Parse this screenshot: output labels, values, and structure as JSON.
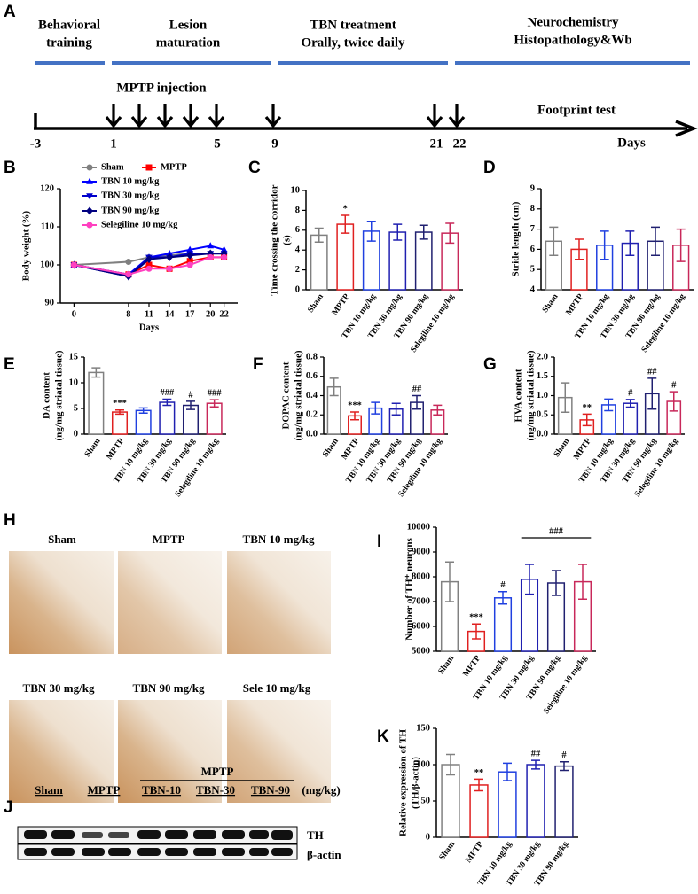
{
  "timeline": {
    "panel": "A",
    "phases": [
      [
        "Behavioral",
        "training"
      ],
      [
        "Lesion",
        "maturation"
      ],
      [
        "TBN treatment",
        "Orally, twice daily"
      ],
      [
        "Neurochemistry",
        "Histopathology&Wb"
      ]
    ],
    "injection_label": "MPTP injection",
    "test_label": "Footprint test",
    "axis_label": "Days",
    "day_labels": [
      "-3",
      "1",
      "5",
      "9",
      "21",
      "22"
    ]
  },
  "histology": {
    "panel": "H",
    "labels": [
      "Sham",
      "MPTP",
      "TBN 10 mg/kg",
      "TBN 30 mg/kg",
      "TBN 90 mg/kg",
      "Sele 10 mg/kg"
    ]
  },
  "western_blot": {
    "panel": "J",
    "group_label": "MPTP",
    "lanes": [
      "Sham",
      "MPTP",
      "TBN-10",
      "TBN-30",
      "TBN-90"
    ],
    "unit": "(mg/kg)",
    "bands": [
      "TH",
      "β-actin"
    ]
  },
  "chart_data": [
    {
      "type": "line",
      "panel": "B",
      "ylabel": [
        "Body weight (%)"
      ],
      "xlabel": "Days",
      "x": [
        0,
        8,
        11,
        14,
        17,
        20,
        22
      ],
      "xlim": [
        -2,
        24
      ],
      "xticks": [
        0,
        8,
        11,
        14,
        17,
        20,
        22
      ],
      "ylim": [
        90,
        120
      ],
      "yticks": [
        90,
        100,
        110,
        120
      ],
      "series": [
        {
          "name": "Sham",
          "color": "#808080",
          "marker": "circle",
          "values": [
            100,
            100.8,
            102,
            102.5,
            103,
            103,
            103
          ]
        },
        {
          "name": "MPTP",
          "color": "#ff0000",
          "marker": "square",
          "values": [
            100,
            97.5,
            100,
            99,
            101,
            102,
            102
          ]
        },
        {
          "name": "TBN 10 mg/kg",
          "color": "#0000ff",
          "marker": "triangle-up",
          "values": [
            100,
            97.5,
            102,
            103,
            104,
            105,
            104
          ]
        },
        {
          "name": "TBN 30 mg/kg",
          "color": "#0000cc",
          "marker": "triangle-down",
          "values": [
            100,
            97,
            102,
            102,
            103,
            103,
            103
          ]
        },
        {
          "name": "TBN 90 mg/kg",
          "color": "#000080",
          "marker": "diamond",
          "values": [
            100,
            97,
            101.5,
            102,
            102.5,
            103,
            103
          ]
        },
        {
          "name": "Selegiline 10 mg/kg",
          "color": "#ff40c0",
          "marker": "circle",
          "values": [
            100,
            97.5,
            99,
            99,
            100,
            102,
            102
          ]
        }
      ]
    },
    {
      "type": "bar",
      "panel": "C",
      "ylabel": [
        "Time crossing the corridor",
        "(s)"
      ],
      "categories": [
        "Sham",
        "MPTP",
        "TBN 10 mg/kg",
        "TBN 30 mg/kg",
        "TBN 90 mg/kg",
        "Selegiline 10 mg/kg"
      ],
      "values": [
        5.5,
        6.6,
        5.9,
        5.8,
        5.8,
        5.7
      ],
      "errors": [
        0.7,
        0.9,
        1.0,
        0.8,
        0.7,
        1.0
      ],
      "annotations": [
        null,
        "*",
        null,
        null,
        null,
        null
      ],
      "colors": [
        "#808080",
        "#e02020",
        "#2040e0",
        "#2020b0",
        "#202070",
        "#c8285a"
      ],
      "ylim": [
        0,
        10
      ],
      "yticks": [
        0,
        2,
        4,
        6,
        8,
        10
      ]
    },
    {
      "type": "bar",
      "panel": "D",
      "ylabel": [
        "Stride length (cm)"
      ],
      "categories": [
        "Sham",
        "MPTP",
        "TBN 10 mg/kg",
        "TBN 30 mg/kg",
        "TBN 90 mg/kg",
        "Selegiline 10 mg/kg"
      ],
      "values": [
        6.4,
        6.0,
        6.2,
        6.3,
        6.4,
        6.2
      ],
      "errors": [
        0.7,
        0.5,
        0.7,
        0.6,
        0.7,
        0.8
      ],
      "annotations": [
        null,
        null,
        null,
        null,
        null,
        null
      ],
      "colors": [
        "#808080",
        "#e02020",
        "#2040e0",
        "#2020b0",
        "#202070",
        "#c8285a"
      ],
      "ylim": [
        4,
        9
      ],
      "yticks": [
        4,
        5,
        6,
        7,
        8,
        9
      ]
    },
    {
      "type": "bar",
      "panel": "E",
      "ylabel": [
        "DA content",
        "(ng/mg striatal tissue)"
      ],
      "categories": [
        "Sham",
        "MPTP",
        "TBN 10 mg/kg",
        "TBN 30 mg/kg",
        "TBN 90 mg/kg",
        "Selegiline 10 mg/kg"
      ],
      "values": [
        12,
        4.3,
        4.6,
        6.2,
        5.6,
        6.0
      ],
      "errors": [
        0.9,
        0.4,
        0.5,
        0.6,
        0.8,
        0.7
      ],
      "annotations": [
        null,
        "***",
        null,
        "###",
        "#",
        "###"
      ],
      "colors": [
        "#808080",
        "#e02020",
        "#2040e0",
        "#2020b0",
        "#202070",
        "#c8285a"
      ],
      "ylim": [
        0,
        15
      ],
      "yticks": [
        0,
        5,
        10,
        15
      ]
    },
    {
      "type": "bar",
      "panel": "F",
      "ylabel": [
        "DOPAC content",
        "(ng/mg striatal tissue)"
      ],
      "categories": [
        "Sham",
        "MPTP",
        "TBN 10 mg/kg",
        "TBN 30 mg/kg",
        "TBN 90 mg/kg",
        "Selegiline 10 mg/kg"
      ],
      "values": [
        0.49,
        0.19,
        0.27,
        0.26,
        0.33,
        0.25
      ],
      "errors": [
        0.09,
        0.04,
        0.06,
        0.06,
        0.07,
        0.05
      ],
      "annotations": [
        null,
        "***",
        null,
        null,
        "##",
        null
      ],
      "colors": [
        "#808080",
        "#e02020",
        "#2040e0",
        "#2020b0",
        "#202070",
        "#c8285a"
      ],
      "ylim": [
        0,
        0.8
      ],
      "yticks": [
        {
          "value": 0,
          "label": "0.0"
        },
        0.2,
        0.4,
        0.6,
        0.8
      ]
    },
    {
      "type": "bar",
      "panel": "G",
      "ylabel": [
        "HVA content",
        "(ng/mg striatal tissue)"
      ],
      "categories": [
        "Sham",
        "MPTP",
        "TBN 10 mg/kg",
        "TBN 30 mg/kg",
        "TBN 90 mg/kg",
        "Selegiline 10 mg/kg"
      ],
      "values": [
        0.95,
        0.37,
        0.76,
        0.8,
        1.05,
        0.85
      ],
      "errors": [
        0.38,
        0.15,
        0.15,
        0.1,
        0.4,
        0.25
      ],
      "annotations": [
        null,
        "**",
        null,
        "#",
        "##",
        "#"
      ],
      "colors": [
        "#808080",
        "#e02020",
        "#2040e0",
        "#2020b0",
        "#202070",
        "#c8285a"
      ],
      "ylim": [
        0,
        2
      ],
      "yticks": [
        {
          "value": 0,
          "label": "0.0"
        },
        0.5,
        {
          "value": 1,
          "label": "1.0"
        },
        1.5,
        {
          "value": 2,
          "label": "2.0"
        }
      ]
    },
    {
      "type": "bar",
      "panel": "I",
      "ylabel": [
        "Number of TH⁺ neurons"
      ],
      "categories": [
        "Sham",
        "MPTP",
        "TBN 10 mg/kg",
        "TBN 30 mg/kg",
        "TBN 90 mg/kg",
        "Selegiline 10 mg/kg"
      ],
      "values": [
        7800,
        5800,
        7150,
        7900,
        7750,
        7800
      ],
      "errors": [
        800,
        300,
        250,
        600,
        500,
        700
      ],
      "annotations": [
        null,
        "***",
        "#",
        null,
        null,
        null
      ],
      "bracket": {
        "text": "###",
        "from": "TBN 30 mg/kg",
        "to": "Selegiline 10 mg/kg"
      },
      "colors": [
        "#808080",
        "#e02020",
        "#2040e0",
        "#2020b0",
        "#202070",
        "#c8285a"
      ],
      "ylim": [
        5000,
        10000
      ],
      "yticks": [
        5000,
        6000,
        7000,
        8000,
        9000,
        10000
      ]
    },
    {
      "type": "bar",
      "panel": "K",
      "ylabel": [
        "Relative expression of TH",
        "(TH/β-actin)"
      ],
      "categories": [
        "Sham",
        "MPTP",
        "TBN 10 mg/kg",
        "TBN 30 mg/kg",
        "TBN 90 mg/kg"
      ],
      "values": [
        100,
        72,
        90,
        100,
        98
      ],
      "errors": [
        14,
        8,
        12,
        6,
        6
      ],
      "annotations": [
        null,
        "**",
        null,
        "##",
        "#"
      ],
      "colors": [
        "#808080",
        "#e02020",
        "#2040e0",
        "#2020b0",
        "#202070"
      ],
      "ylim": [
        0,
        150
      ],
      "yticks": [
        0,
        50,
        100,
        150
      ]
    }
  ]
}
